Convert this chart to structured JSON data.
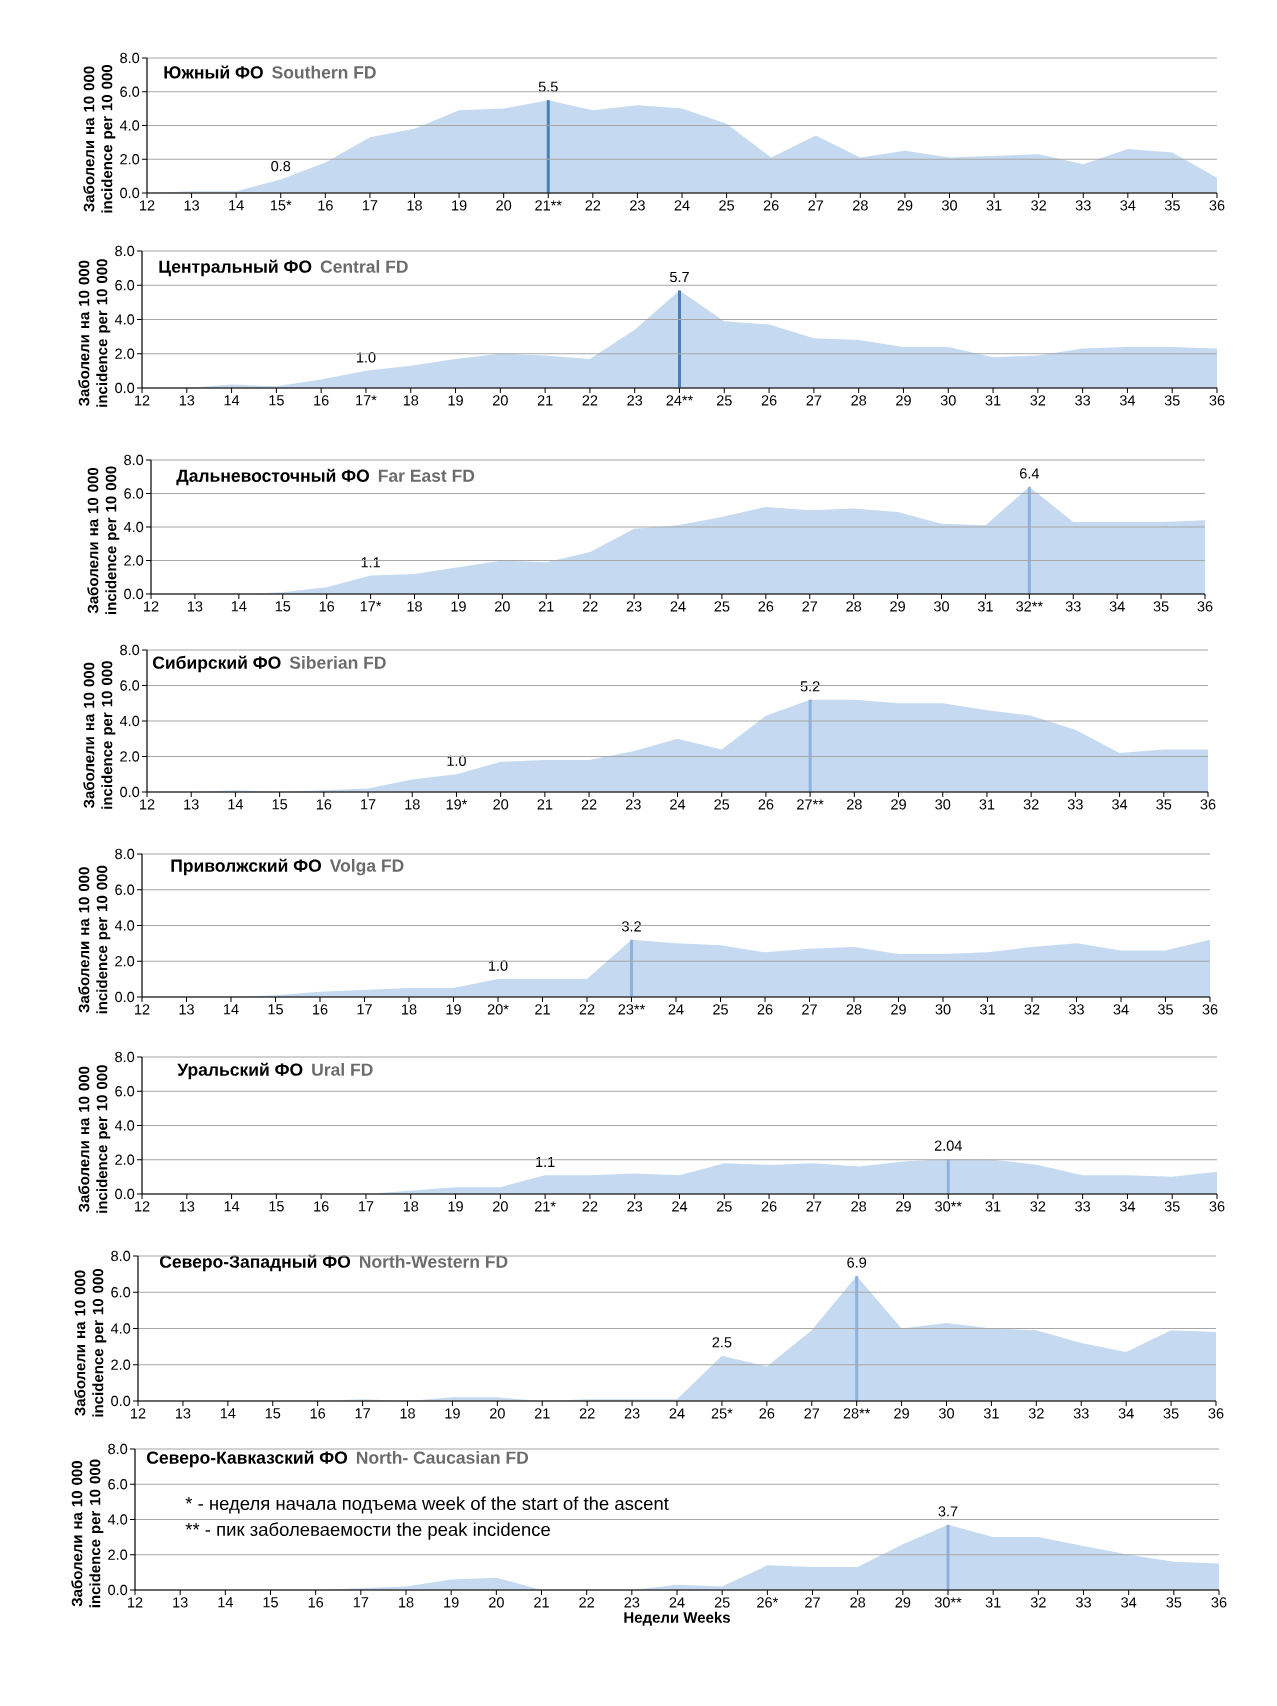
{
  "chart_data": [
    {
      "type": "area",
      "title": "Южный ФО",
      "subtitle": "Southern FD",
      "ylabel": "Заболели на 10 000 incidence per 10 000",
      "x": [
        12,
        13,
        14,
        15,
        16,
        17,
        18,
        19,
        20,
        21,
        22,
        23,
        24,
        25,
        26,
        27,
        28,
        29,
        30,
        31,
        32,
        33,
        34,
        35,
        36
      ],
      "values": [
        0,
        0.1,
        0.1,
        0.8,
        1.8,
        3.3,
        3.8,
        4.9,
        5.0,
        5.5,
        4.9,
        5.2,
        5.0,
        4.1,
        2.1,
        3.4,
        2.1,
        2.5,
        2.1,
        2.2,
        2.3,
        1.7,
        2.6,
        2.4,
        0.9
      ],
      "value_labels": [
        null,
        null,
        null,
        "0.8",
        null,
        null,
        null,
        null,
        null,
        "5.5",
        null,
        null,
        null,
        null,
        null,
        null,
        null,
        null,
        null,
        null,
        null,
        null,
        null,
        null,
        null
      ],
      "color": "#c5daf0",
      "xlim": [
        12,
        36
      ],
      "ylim": [
        0,
        8
      ],
      "xticks": [
        12,
        13,
        14,
        {
          "value": 15,
          "label": "15*"
        },
        16,
        17,
        18,
        19,
        20,
        {
          "value": 21,
          "label": "21**"
        },
        22,
        23,
        24,
        25,
        26,
        27,
        28,
        29,
        30,
        31,
        32,
        33,
        34,
        35,
        36
      ],
      "yticks": [
        {
          "value": 0,
          "label": "0.0"
        },
        {
          "value": 2,
          "label": "2.0"
        },
        {
          "value": 4,
          "label": "4.0"
        },
        {
          "value": 6,
          "label": "6.0"
        },
        {
          "value": 8,
          "label": "8.0"
        }
      ],
      "grid": "y",
      "ref_lines": [
        {
          "axis": "x",
          "value": 21,
          "color": "#4a7ebb"
        }
      ]
    },
    {
      "type": "area",
      "title": "Центральный ФО",
      "subtitle": "Central FD",
      "ylabel": "Заболели на 10 000 incidence per 10 000",
      "x": [
        12,
        13,
        14,
        15,
        16,
        17,
        18,
        19,
        20,
        21,
        22,
        23,
        24,
        25,
        26,
        27,
        28,
        29,
        30,
        31,
        32,
        33,
        34,
        35,
        36
      ],
      "values": [
        0,
        0,
        0.2,
        0.1,
        0.5,
        1.0,
        1.3,
        1.7,
        2.0,
        1.9,
        1.7,
        3.4,
        5.7,
        3.9,
        3.7,
        2.9,
        2.8,
        2.4,
        2.4,
        1.8,
        1.9,
        2.3,
        2.4,
        2.4,
        2.3
      ],
      "value_labels": [
        null,
        null,
        null,
        null,
        null,
        "1.0",
        null,
        null,
        null,
        null,
        null,
        null,
        "5.7",
        null,
        null,
        null,
        null,
        null,
        null,
        null,
        null,
        null,
        null,
        null,
        null
      ],
      "color": "#c5daf0",
      "xlim": [
        12,
        36
      ],
      "ylim": [
        0,
        8
      ],
      "xticks": [
        12,
        13,
        14,
        15,
        16,
        {
          "value": 17,
          "label": "17*"
        },
        18,
        19,
        20,
        21,
        22,
        23,
        {
          "value": 24,
          "label": "24**"
        },
        25,
        26,
        27,
        28,
        29,
        30,
        31,
        32,
        33,
        34,
        35,
        36
      ],
      "yticks": [
        {
          "value": 0,
          "label": "0.0"
        },
        {
          "value": 2,
          "label": "2.0"
        },
        {
          "value": 4,
          "label": "4.0"
        },
        {
          "value": 6,
          "label": "6.0"
        },
        {
          "value": 8,
          "label": "8.0"
        }
      ],
      "grid": "y",
      "ref_lines": [
        {
          "axis": "x",
          "value": 24,
          "color": "#4a7ebb"
        }
      ]
    },
    {
      "type": "area",
      "title": "Дальневосточный ФО",
      "subtitle": "Far East FD",
      "ylabel": "Заболели на 10 000 incidence per 10 000",
      "x": [
        12,
        13,
        14,
        15,
        16,
        17,
        18,
        19,
        20,
        21,
        22,
        23,
        24,
        25,
        26,
        27,
        28,
        29,
        30,
        31,
        32,
        33,
        34,
        35,
        36
      ],
      "values": [
        0,
        0,
        0,
        0.1,
        0.4,
        1.1,
        1.2,
        1.6,
        2.0,
        1.9,
        2.5,
        3.9,
        4.1,
        4.6,
        5.2,
        5.0,
        5.1,
        4.9,
        4.2,
        4.1,
        6.4,
        4.3,
        4.3,
        4.3,
        4.4
      ],
      "value_labels": [
        null,
        null,
        null,
        null,
        null,
        "1.1",
        null,
        null,
        null,
        null,
        null,
        null,
        null,
        null,
        null,
        null,
        null,
        null,
        null,
        null,
        "6.4",
        null,
        null,
        null,
        null
      ],
      "color": "#c5daf0",
      "xlim": [
        12,
        36
      ],
      "ylim": [
        0,
        8
      ],
      "xticks": [
        12,
        13,
        14,
        15,
        16,
        {
          "value": 17,
          "label": "17*"
        },
        18,
        19,
        20,
        21,
        22,
        23,
        24,
        25,
        26,
        27,
        28,
        29,
        30,
        31,
        {
          "value": 32,
          "label": "32**"
        },
        33,
        34,
        35,
        36
      ],
      "yticks": [
        {
          "value": 0,
          "label": "0.0"
        },
        {
          "value": 2,
          "label": "2.0"
        },
        {
          "value": 4,
          "label": "4.0"
        },
        {
          "value": 6,
          "label": "6.0"
        },
        {
          "value": 8,
          "label": "8.0"
        }
      ],
      "grid": "y",
      "ref_lines": [
        {
          "axis": "x",
          "value": 32,
          "color": "#8fb1de"
        }
      ]
    },
    {
      "type": "area",
      "title": "Сибирский ФО",
      "subtitle": "Siberian FD",
      "ylabel": "Заболели на 10 000 incidence per 10 000",
      "x": [
        12,
        13,
        14,
        15,
        16,
        17,
        18,
        19,
        20,
        21,
        22,
        23,
        24,
        25,
        26,
        27,
        28,
        29,
        30,
        31,
        32,
        33,
        34,
        35,
        36
      ],
      "values": [
        0,
        0,
        0.1,
        0,
        0.1,
        0.2,
        0.7,
        1.0,
        1.7,
        1.8,
        1.8,
        2.3,
        3.0,
        2.4,
        4.3,
        5.2,
        5.2,
        5.0,
        5.0,
        4.6,
        4.3,
        3.5,
        2.2,
        2.4,
        2.4
      ],
      "value_labels": [
        null,
        null,
        null,
        null,
        null,
        null,
        null,
        "1.0",
        null,
        null,
        null,
        null,
        null,
        null,
        null,
        "5.2",
        null,
        null,
        null,
        null,
        null,
        null,
        null,
        null,
        null
      ],
      "color": "#c5daf0",
      "xlim": [
        12,
        36
      ],
      "ylim": [
        0,
        8
      ],
      "xticks": [
        12,
        13,
        14,
        15,
        16,
        17,
        18,
        {
          "value": 19,
          "label": "19*"
        },
        20,
        21,
        22,
        23,
        24,
        25,
        26,
        {
          "value": 27,
          "label": "27**"
        },
        28,
        29,
        30,
        31,
        32,
        33,
        34,
        35,
        36
      ],
      "yticks": [
        {
          "value": 0,
          "label": "0.0"
        },
        {
          "value": 2,
          "label": "2.0"
        },
        {
          "value": 4,
          "label": "4.0"
        },
        {
          "value": 6,
          "label": "6.0"
        },
        {
          "value": 8,
          "label": "8.0"
        }
      ],
      "grid": "y",
      "ref_lines": [
        {
          "axis": "x",
          "value": 27,
          "color": "#8fb1de"
        }
      ]
    },
    {
      "type": "area",
      "title": "Приволжский ФО",
      "subtitle": "Volga FD",
      "ylabel": "Заболели на 10 000 incidence per 10 000",
      "x": [
        12,
        13,
        14,
        15,
        16,
        17,
        18,
        19,
        20,
        21,
        22,
        23,
        24,
        25,
        26,
        27,
        28,
        29,
        30,
        31,
        32,
        33,
        34,
        35,
        36
      ],
      "values": [
        0,
        0,
        0,
        0.1,
        0.3,
        0.4,
        0.5,
        0.5,
        1.0,
        1.0,
        1.0,
        3.2,
        3.0,
        2.9,
        2.5,
        2.7,
        2.8,
        2.4,
        2.4,
        2.5,
        2.8,
        3.0,
        2.6,
        2.6,
        3.2
      ],
      "value_labels": [
        null,
        null,
        null,
        null,
        null,
        null,
        null,
        null,
        "1.0",
        null,
        null,
        "3.2",
        null,
        null,
        null,
        null,
        null,
        null,
        null,
        null,
        null,
        null,
        null,
        null,
        null
      ],
      "color": "#c5daf0",
      "xlim": [
        12,
        36
      ],
      "ylim": [
        0,
        8
      ],
      "xticks": [
        12,
        13,
        14,
        15,
        16,
        17,
        18,
        19,
        {
          "value": 20,
          "label": "20*"
        },
        21,
        22,
        {
          "value": 23,
          "label": "23**"
        },
        24,
        25,
        26,
        27,
        28,
        29,
        30,
        31,
        32,
        33,
        34,
        35,
        36
      ],
      "yticks": [
        {
          "value": 0,
          "label": "0.0"
        },
        {
          "value": 2,
          "label": "2.0"
        },
        {
          "value": 4,
          "label": "4.0"
        },
        {
          "value": 6,
          "label": "6.0"
        },
        {
          "value": 8,
          "label": "8.0"
        }
      ],
      "grid": "y",
      "ref_lines": [
        {
          "axis": "x",
          "value": 23,
          "color": "#8fb1de"
        }
      ]
    },
    {
      "type": "area",
      "title": "Уральский ФО",
      "subtitle": "Ural FD",
      "ylabel": "Заболели на 10 000 incidence per 10 000",
      "x": [
        12,
        13,
        14,
        15,
        16,
        17,
        18,
        19,
        20,
        21,
        22,
        23,
        24,
        25,
        26,
        27,
        28,
        29,
        30,
        31,
        32,
        33,
        34,
        35,
        36
      ],
      "values": [
        0,
        0,
        0,
        0,
        0,
        0,
        0.2,
        0.4,
        0.4,
        1.1,
        1.1,
        1.2,
        1.1,
        1.8,
        1.7,
        1.8,
        1.6,
        1.9,
        2.04,
        2.0,
        1.7,
        1.1,
        1.1,
        1.0,
        1.3
      ],
      "value_labels": [
        null,
        null,
        null,
        null,
        null,
        null,
        null,
        null,
        null,
        "1.1",
        null,
        null,
        null,
        null,
        null,
        null,
        null,
        null,
        "2.04",
        null,
        null,
        null,
        null,
        null,
        null
      ],
      "color": "#c5daf0",
      "xlim": [
        12,
        36
      ],
      "ylim": [
        0,
        8
      ],
      "xticks": [
        12,
        13,
        14,
        15,
        16,
        17,
        18,
        19,
        20,
        {
          "value": 21,
          "label": "21*"
        },
        22,
        23,
        24,
        25,
        26,
        27,
        28,
        29,
        {
          "value": 30,
          "label": "30**"
        },
        31,
        32,
        33,
        34,
        35,
        36
      ],
      "yticks": [
        {
          "value": 0,
          "label": "0.0"
        },
        {
          "value": 2,
          "label": "2.0"
        },
        {
          "value": 4,
          "label": "4.0"
        },
        {
          "value": 6,
          "label": "6.0"
        },
        {
          "value": 8,
          "label": "8.0"
        }
      ],
      "grid": "y",
      "ref_lines": [
        {
          "axis": "x",
          "value": 30,
          "color": "#8fb1de"
        }
      ]
    },
    {
      "type": "area",
      "title": "Северо-Западный ФО",
      "subtitle": "North-Western FD",
      "ylabel": "Заболели на 10 000 incidence per 10 000",
      "x": [
        12,
        13,
        14,
        15,
        16,
        17,
        18,
        19,
        20,
        21,
        22,
        23,
        24,
        25,
        26,
        27,
        28,
        29,
        30,
        31,
        32,
        33,
        34,
        35,
        36
      ],
      "values": [
        0,
        0,
        0,
        0,
        0,
        0.1,
        0,
        0.2,
        0.2,
        0,
        0.1,
        0.1,
        0.1,
        2.5,
        1.9,
        3.9,
        6.9,
        4.0,
        4.3,
        4.0,
        3.9,
        3.2,
        2.7,
        3.9,
        3.8
      ],
      "value_labels": [
        null,
        null,
        null,
        null,
        null,
        null,
        null,
        null,
        null,
        null,
        null,
        null,
        null,
        "2.5",
        null,
        null,
        "6.9",
        null,
        null,
        null,
        null,
        null,
        null,
        null,
        null
      ],
      "color": "#c5daf0",
      "xlim": [
        12,
        36
      ],
      "ylim": [
        0,
        8
      ],
      "xticks": [
        12,
        13,
        14,
        15,
        16,
        17,
        18,
        19,
        20,
        21,
        22,
        23,
        24,
        {
          "value": 25,
          "label": "25*"
        },
        26,
        27,
        {
          "value": 28,
          "label": "28**"
        },
        29,
        30,
        31,
        32,
        33,
        34,
        35,
        36
      ],
      "yticks": [
        {
          "value": 0,
          "label": "0.0"
        },
        {
          "value": 2,
          "label": "2.0"
        },
        {
          "value": 4,
          "label": "4.0"
        },
        {
          "value": 6,
          "label": "6.0"
        },
        {
          "value": 8,
          "label": "8.0"
        }
      ],
      "grid": "y",
      "ref_lines": [
        {
          "axis": "x",
          "value": 28,
          "color": "#8fb1de"
        }
      ]
    },
    {
      "type": "area",
      "title": "Северо-Кавказский ФО",
      "subtitle": "North- Caucasian FD",
      "ylabel": "Заболели на 10 000 incidence per 10 000",
      "xlabel": "Недели Weeks",
      "x": [
        12,
        13,
        14,
        15,
        16,
        17,
        18,
        19,
        20,
        21,
        22,
        23,
        24,
        25,
        26,
        27,
        28,
        29,
        30,
        31,
        32,
        33,
        34,
        35,
        36
      ],
      "values": [
        0,
        0,
        0,
        0,
        0,
        0.1,
        0.2,
        0.6,
        0.7,
        0,
        0,
        0,
        0.3,
        0.2,
        1.4,
        1.3,
        1.3,
        2.6,
        3.7,
        3.0,
        3.0,
        2.5,
        2.0,
        1.6,
        1.5
      ],
      "value_labels": [
        null,
        null,
        null,
        null,
        null,
        null,
        null,
        null,
        null,
        null,
        null,
        null,
        null,
        null,
        null,
        null,
        null,
        null,
        "3.7",
        null,
        null,
        null,
        null,
        null,
        null
      ],
      "color": "#c5daf0",
      "xlim": [
        12,
        36
      ],
      "ylim": [
        0,
        8
      ],
      "xticks": [
        12,
        13,
        14,
        15,
        16,
        17,
        18,
        19,
        20,
        21,
        22,
        23,
        24,
        25,
        {
          "value": 26,
          "label": "26*"
        },
        27,
        28,
        29,
        {
          "value": 30,
          "label": "30**"
        },
        31,
        32,
        33,
        34,
        35,
        36
      ],
      "yticks": [
        {
          "value": 0,
          "label": "0.0"
        },
        {
          "value": 2,
          "label": "2.0"
        },
        {
          "value": 4,
          "label": "4.0"
        },
        {
          "value": 6,
          "label": "6.0"
        },
        {
          "value": 8,
          "label": "8.0"
        }
      ],
      "grid": "y",
      "ref_lines": [
        {
          "axis": "x",
          "value": 30,
          "color": "#8fb1de"
        }
      ],
      "annotations": [
        "* - неделя начала подъема week of the start of the ascent",
        "** - пик заболеваемости the peak incidence"
      ]
    }
  ]
}
